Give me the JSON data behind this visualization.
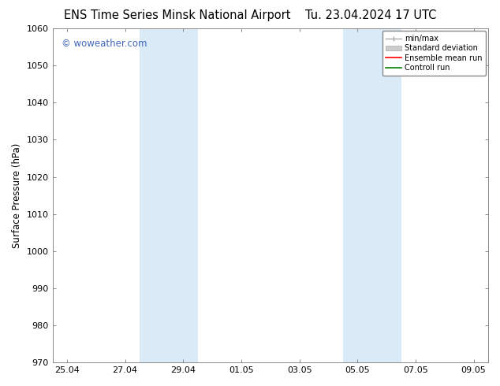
{
  "title_left": "ENS Time Series Minsk National Airport",
  "title_right": "Tu. 23.04.2024 17 UTC",
  "ylabel": "Surface Pressure (hPa)",
  "ylim": [
    970,
    1060
  ],
  "yticks": [
    970,
    980,
    990,
    1000,
    1010,
    1020,
    1030,
    1040,
    1050,
    1060
  ],
  "xtick_labels": [
    "25.04",
    "27.04",
    "29.04",
    "01.05",
    "03.05",
    "05.05",
    "07.05",
    "09.05"
  ],
  "xtick_positions": [
    0,
    2,
    4,
    6,
    8,
    10,
    12,
    14
  ],
  "xlim": [
    -0.5,
    14.5
  ],
  "shaded_bands": [
    {
      "x_start": 2.5,
      "x_end": 4.5
    },
    {
      "x_start": 9.5,
      "x_end": 10.5
    },
    {
      "x_start": 10.5,
      "x_end": 11.5
    }
  ],
  "shaded_color": "#daeaf7",
  "background_color": "#ffffff",
  "watermark_text": "© woweather.com",
  "watermark_color": "#4466bb",
  "legend_labels": [
    "min/max",
    "Standard deviation",
    "Ensemble mean run",
    "Controll run"
  ],
  "legend_colors": [
    "#aaaaaa",
    "#cccccc",
    "#ff0000",
    "#008000"
  ],
  "title_fontsize": 10.5,
  "axis_fontsize": 8.5,
  "tick_fontsize": 8
}
